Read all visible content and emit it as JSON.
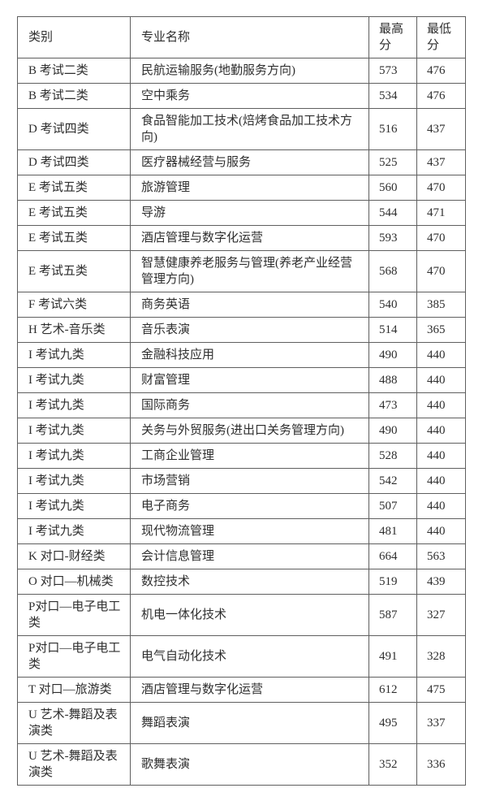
{
  "colors": {
    "text": "#2e2e2e",
    "border": "#5f5f5f",
    "background": "#ffffff"
  },
  "table": {
    "columns": [
      {
        "key": "category",
        "label": "类别"
      },
      {
        "key": "major",
        "label": "专业名称"
      },
      {
        "key": "max",
        "label": "最高分"
      },
      {
        "key": "min",
        "label": "最低分"
      }
    ],
    "rows": [
      {
        "category": "B 考试二类",
        "major": "民航运输服务(地勤服务方向)",
        "max": "573",
        "min": "476",
        "lines": 1
      },
      {
        "category": "B 考试二类",
        "major": "空中乘务",
        "max": "534",
        "min": "476",
        "lines": 1
      },
      {
        "category": "D 考试四类",
        "major": "食品智能加工技术(焙烤食品加工技术方向)",
        "max": "516",
        "min": "437",
        "lines": 2
      },
      {
        "category": "D 考试四类",
        "major": "医疗器械经营与服务",
        "max": "525",
        "min": "437",
        "lines": 1
      },
      {
        "category": "E 考试五类",
        "major": "旅游管理",
        "max": "560",
        "min": "470",
        "lines": 1
      },
      {
        "category": "E 考试五类",
        "major": "导游",
        "max": "544",
        "min": "471",
        "lines": 1
      },
      {
        "category": "E 考试五类",
        "major": "酒店管理与数字化运营",
        "max": "593",
        "min": "470",
        "lines": 1
      },
      {
        "category": "E 考试五类",
        "major": "智慧健康养老服务与管理(养老产业经营管理方向)",
        "max": "568",
        "min": "470",
        "lines": 2
      },
      {
        "category": "F 考试六类",
        "major": "商务英语",
        "max": "540",
        "min": "385",
        "lines": 1
      },
      {
        "category": "H 艺术-音乐类",
        "major": "音乐表演",
        "max": "514",
        "min": "365",
        "lines": 1
      },
      {
        "category": "I 考试九类",
        "major": "金融科技应用",
        "max": "490",
        "min": "440",
        "lines": 1
      },
      {
        "category": "I 考试九类",
        "major": "财富管理",
        "max": "488",
        "min": "440",
        "lines": 1
      },
      {
        "category": "I 考试九类",
        "major": "国际商务",
        "max": "473",
        "min": "440",
        "lines": 1
      },
      {
        "category": "I 考试九类",
        "major": "关务与外贸服务(进出口关务管理方向)",
        "max": "490",
        "min": "440",
        "lines": 1
      },
      {
        "category": "I 考试九类",
        "major": "工商企业管理",
        "max": "528",
        "min": "440",
        "lines": 1
      },
      {
        "category": "I 考试九类",
        "major": "市场营销",
        "max": "542",
        "min": "440",
        "lines": 1
      },
      {
        "category": "I 考试九类",
        "major": "电子商务",
        "max": "507",
        "min": "440",
        "lines": 1
      },
      {
        "category": "I 考试九类",
        "major": "现代物流管理",
        "max": "481",
        "min": "440",
        "lines": 1
      },
      {
        "category": "K 对口-财经类",
        "major": "会计信息管理",
        "max": "664",
        "min": "563",
        "lines": 1
      },
      {
        "category": "O 对口—机械类",
        "major": "数控技术",
        "max": "519",
        "min": "439",
        "lines": 1
      },
      {
        "category": "P对口—电子电工类",
        "major": "机电一体化技术",
        "max": "587",
        "min": "327",
        "lines": 2
      },
      {
        "category": "P对口—电子电工类",
        "major": "电气自动化技术",
        "max": "491",
        "min": "328",
        "lines": 2
      },
      {
        "category": "T 对口—旅游类",
        "major": "酒店管理与数字化运营",
        "max": "612",
        "min": "475",
        "lines": 1
      },
      {
        "category": "U 艺术-舞蹈及表演类",
        "major": "舞蹈表演",
        "max": "495",
        "min": "337",
        "lines": 2
      },
      {
        "category": "U 艺术-舞蹈及表演类",
        "major": "歌舞表演",
        "max": "352",
        "min": "336",
        "lines": 2
      }
    ]
  }
}
